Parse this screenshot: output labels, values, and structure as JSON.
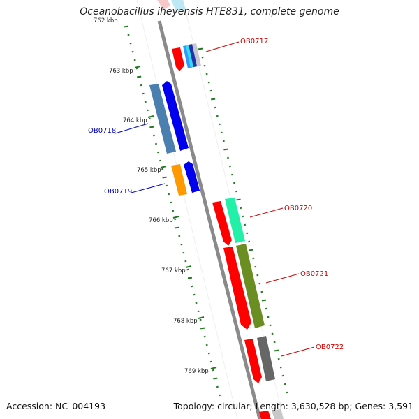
{
  "title": "Oceanobacillus iheyensis HTE831, complete genome",
  "footer": {
    "accession": "Accession: NC_004193",
    "stats": "Topology: circular; Length: 3,630,528 bp; Genes: 3,591"
  },
  "colors": {
    "backbone": "#8a8a8a",
    "scale_tick": "#1f7a1f",
    "label_forward": "#cc0000",
    "label_reverse": "#0000bb"
  },
  "scale_labels": [
    "762 kbp",
    "763 kbp",
    "764 kbp",
    "765 kbp",
    "766 kbp",
    "767 kbp",
    "768 kbp",
    "769 kbp"
  ],
  "gene_labels": [
    {
      "id": "OB0717",
      "strand": "forward"
    },
    {
      "id": "OB0718",
      "strand": "reverse"
    },
    {
      "id": "OB0719",
      "strand": "reverse"
    },
    {
      "id": "OB0720",
      "strand": "forward"
    },
    {
      "id": "OB0721",
      "strand": "forward"
    },
    {
      "id": "OB0722",
      "strand": "forward"
    }
  ]
}
